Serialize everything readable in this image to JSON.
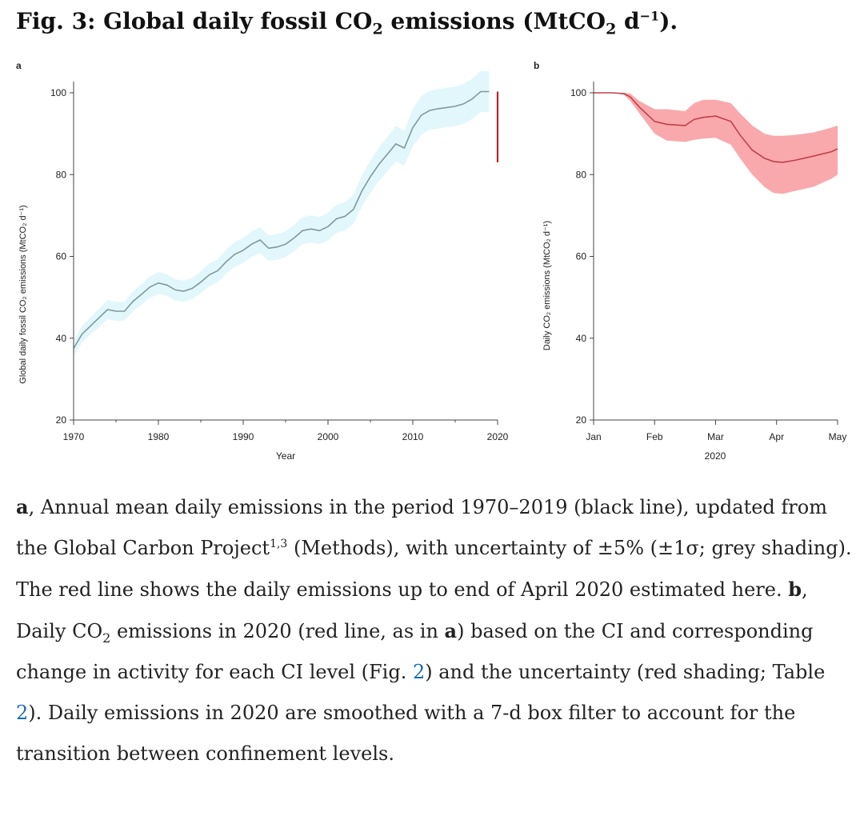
{
  "figure": {
    "title": {
      "prefix": "Fig. 3: Global daily fossil CO",
      "sub": "2",
      "mid": " emissions (MtCO",
      "sub2": "2",
      "unit": " d",
      "sup": "−1",
      "end": ")."
    },
    "caption": {
      "t1": "a",
      "t2": ", Annual mean daily emissions in the period 1970–2019 (black line), updated from the Global Carbon Project",
      "t3": "1,3",
      "t4": " (Methods), with uncertainty of ±5% (±1σ; grey shading). The red line shows the daily emissions up to end of April 2020 estimated here. ",
      "t5": "b",
      "t6": ", Daily CO",
      "t7": "2",
      "t8": " emissions in 2020 (red line, as in ",
      "t9": "a",
      "t10": ") based on the CI and corresponding change in activity for each CI level (Fig. ",
      "t11": "2",
      "t12": ") and the uncertainty (red shading; Table ",
      "t13": "2",
      "t14": "). Daily emissions in 2020 are smoothed with a 7-d box filter to account for the transition between confinement levels."
    }
  },
  "colors": {
    "line_a": "#7d9a9c",
    "band_a": "#e2f7fb",
    "line_red": "#c0202a",
    "band_b": "#f9a9ac",
    "line_b": "#c0404a",
    "axis": "#444444",
    "link": "#1a6bb5"
  },
  "chart_data": [
    {
      "panel": "a",
      "type": "area",
      "xlabel": "Year",
      "ylabel": "Global daily fossil CO₂ emissions (MtCO₂ d⁻¹)",
      "xlim": [
        1970,
        2020
      ],
      "ylim": [
        20,
        100
      ],
      "xticks": [
        1970,
        1980,
        1990,
        2000,
        2010,
        2020
      ],
      "yticks": [
        20,
        40,
        60,
        80,
        100
      ],
      "uncertainty_pct": 5,
      "series": [
        {
          "x": [
            1970,
            1971,
            1972,
            1973,
            1974,
            1975,
            1976,
            1977,
            1978,
            1979,
            1980,
            1981,
            1982,
            1983,
            1984,
            1985,
            1986,
            1987,
            1988,
            1989,
            1990,
            1991,
            1992,
            1993,
            1994,
            1995,
            1996,
            1997,
            1998,
            1999,
            2000,
            2001,
            2002,
            2003,
            2004,
            2005,
            2006,
            2007,
            2008,
            2009,
            2010,
            2011,
            2012,
            2013,
            2014,
            2015,
            2016,
            2017,
            2018,
            2019
          ],
          "y": [
            37.5,
            41,
            43,
            45,
            47,
            46.6,
            46.6,
            49,
            50.7,
            52.5,
            53.5,
            53,
            51.8,
            51.5,
            52.2,
            53.7,
            55.5,
            56.5,
            58.7,
            60.5,
            61.5,
            63.0,
            64,
            62.0,
            62.3,
            63,
            64.5,
            66.3,
            66.7,
            66.3,
            67.3,
            69.2,
            69.8,
            71.5,
            76,
            79.5,
            82.5,
            85,
            87.5,
            86.5,
            91.5,
            94.5,
            95.7,
            96.1,
            96.4,
            96.7,
            97.3,
            98.5,
            100.3,
            100.3
          ]
        },
        {
          "x": [
            2020,
            2020,
            2020,
            2020
          ],
          "y": [
            100.3,
            99.2,
            92,
            83
          ]
        }
      ]
    },
    {
      "panel": "b",
      "type": "area",
      "xlabel": "2020",
      "ylabel": "Daily CO₂ emissions (MtCO₂ d⁻¹)",
      "xlim": [
        0,
        4
      ],
      "ylim": [
        20,
        100
      ],
      "xticks": [
        0,
        1,
        2,
        3,
        4
      ],
      "xticklabels": [
        "Jan",
        "Feb",
        "Mar",
        "Apr",
        "May"
      ],
      "yticks": [
        20,
        40,
        60,
        80,
        100
      ],
      "series": [
        {
          "x": [
            0,
            0.3,
            0.5,
            0.6,
            0.75,
            1.0,
            1.2,
            1.5,
            1.65,
            1.8,
            2.0,
            2.25,
            2.4,
            2.6,
            2.8,
            2.95,
            3.1,
            3.3,
            3.6,
            3.9,
            4.0
          ],
          "y": [
            100,
            100,
            99.8,
            99,
            96.5,
            93,
            92.3,
            92,
            93.5,
            94,
            94.3,
            93,
            89.7,
            86,
            84,
            83.2,
            83,
            83.5,
            84.5,
            85.6,
            86.3
          ],
          "lower": [
            100,
            100,
            99.5,
            98,
            95,
            90,
            88.3,
            88,
            88.5,
            88.8,
            89,
            87.3,
            84,
            80,
            77,
            75.5,
            75.3,
            76,
            77,
            79,
            80
          ],
          "upper": [
            100,
            100,
            100,
            99.8,
            98,
            96,
            96,
            95.5,
            97.5,
            98.3,
            98.3,
            97.5,
            95,
            92,
            90,
            89.5,
            89.5,
            89.7,
            90.3,
            91.5,
            92
          ]
        }
      ]
    }
  ],
  "ui": {
    "panel_a_label": "a",
    "panel_b_label": "b"
  }
}
